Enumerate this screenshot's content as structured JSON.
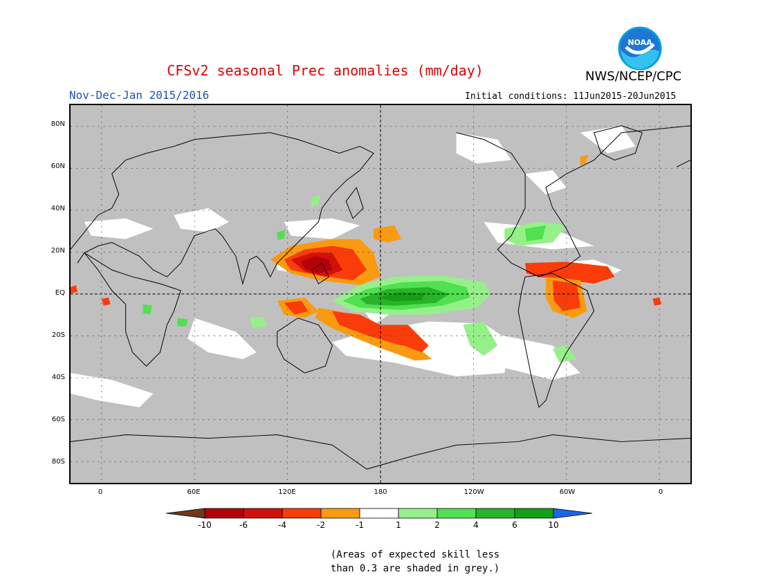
{
  "header": {
    "title": "CFSv2 seasonal Prec anomalies (mm/day)",
    "agency": "NWS/NCEP/CPC",
    "logo_text": "NOAA",
    "period": "Nov-Dec-Jan 2015/2016",
    "initial_conditions": "Initial conditions: 11Jun2015-20Jun2015"
  },
  "axes": {
    "lat_ticks": [
      "80N",
      "60N",
      "40N",
      "20N",
      "EQ",
      "20S",
      "40S",
      "60S",
      "80S"
    ],
    "lat_values": [
      80,
      60,
      40,
      20,
      0,
      -20,
      -40,
      -60,
      -80
    ],
    "lon_ticks": [
      "0",
      "60E",
      "120E",
      "180",
      "120W",
      "60W",
      "0"
    ],
    "lon_values": [
      0,
      60,
      120,
      180,
      240,
      300,
      360
    ],
    "lon_range": [
      -20,
      380
    ],
    "lat_range": [
      -90,
      90
    ]
  },
  "colorbar": {
    "labels": [
      "-10",
      "-6",
      "-4",
      "-2",
      "-1",
      "1",
      "2",
      "4",
      "6",
      "10"
    ],
    "colors": [
      "#6b3a1e",
      "#b4000a",
      "#d2100a",
      "#fa3c0a",
      "#fa9a10",
      "#ffffff",
      "#96f08a",
      "#50e050",
      "#28b428",
      "#14a014",
      "#1e64e6"
    ]
  },
  "colors": {
    "skill_grey": "#c0c0c0",
    "title_red": "#e00000",
    "period_blue": "#2050c0"
  },
  "footnote": {
    "line1": "(Areas of expected skill less",
    "line2": "than 0.3 are shaded in grey.)"
  }
}
